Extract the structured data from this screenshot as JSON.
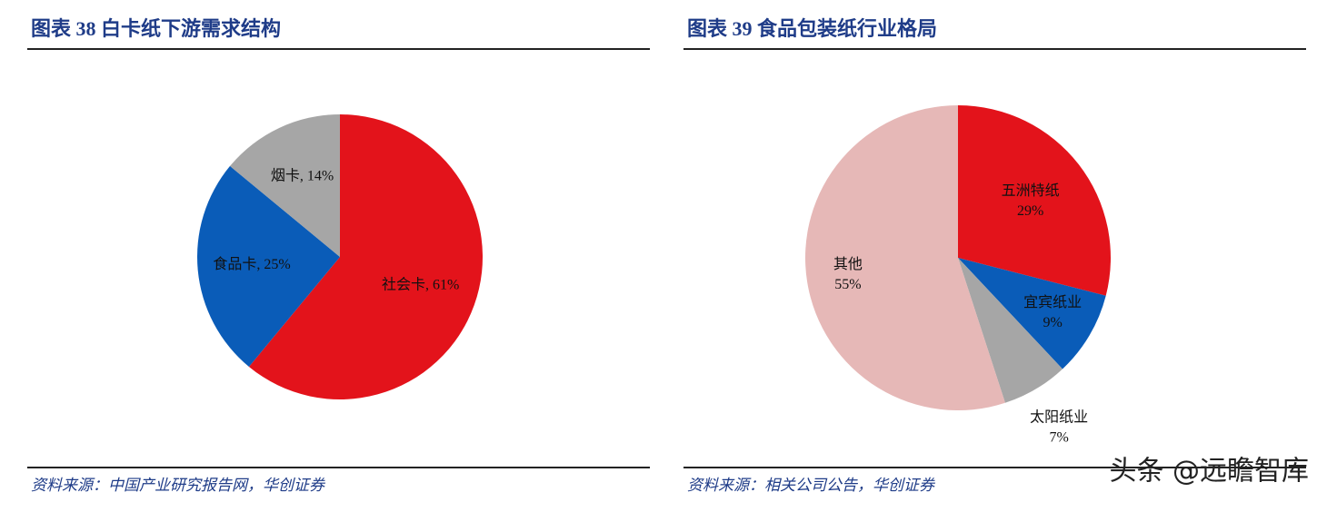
{
  "chart_data": [
    {
      "type": "pie",
      "title": "图表 38   白卡纸下游需求结构",
      "source": "资料来源：中国产业研究报告网，华创证券",
      "values": [
        61,
        25,
        14
      ],
      "value_labels": [
        "社会卡, 61%",
        "食品卡, 25%",
        "烟卡, 14%"
      ],
      "colors": [
        "#e3131b",
        "#0a5cb8",
        "#a6a6a6"
      ]
    },
    {
      "type": "pie",
      "title": "图表 39   食品包装纸行业格局",
      "source": "资料来源：相关公司公告，华创证券",
      "categories": [
        "五洲特纸",
        "宜宾纸业",
        "太阳纸业",
        "其他"
      ],
      "values": [
        29,
        9,
        7,
        55
      ],
      "value_labels": [
        "29%",
        "9%",
        "7%",
        "55%"
      ],
      "colors": [
        "#e3131b",
        "#0a5cb8",
        "#a6a6a6",
        "#e6b8b7"
      ]
    }
  ],
  "watermark": "头条 @远瞻智库"
}
